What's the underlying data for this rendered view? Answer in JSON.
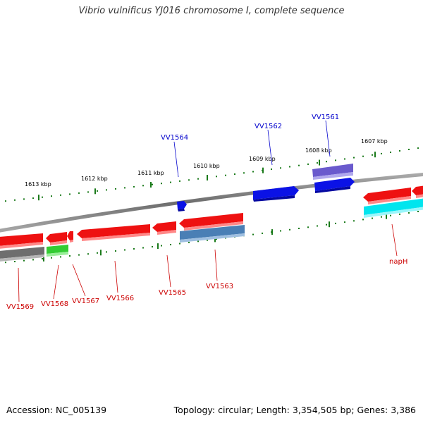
{
  "title": "Vibrio vulnificus YJ016 chromosome I, complete sequence",
  "accession": "Accession: NC_005139",
  "summary": "Topology: circular; Length: 3,354,505 bp; Genes: 3,386",
  "colors": {
    "backbone": "#7b7b7b",
    "tick": "#1a7a1a",
    "upper_label": "#0000cc",
    "lower_label": "#cc0000"
  },
  "kbp_markers": [
    "1613 kbp",
    "1612 kbp",
    "1611 kbp",
    "1610 kbp",
    "1609 kbp",
    "1608 kbp",
    "1607 kbp"
  ],
  "genes_upper_strand": [
    {
      "id": "VV1564",
      "color": "#0b12e6"
    },
    {
      "id": "VV1562",
      "color": "#0b12e6"
    },
    {
      "id": "VV1561",
      "color": "#6a5acd"
    },
    {
      "id": "",
      "color": "#0b12e6"
    }
  ],
  "genes_lower_strand": [
    {
      "id": "VV1569",
      "color": "#ee1111"
    },
    {
      "id": "VV1568",
      "color": "#ee1111"
    },
    {
      "id": "VV1567",
      "color": "#ee1111"
    },
    {
      "id": "VV1566",
      "color": "#ee1111"
    },
    {
      "id": "VV1565",
      "color": "#ee1111"
    },
    {
      "id": "VV1563",
      "color": "#ee1111"
    },
    {
      "id": "napH",
      "color": "#ee1111"
    }
  ],
  "lower_track_features": [
    {
      "color": "#6e6e6e"
    },
    {
      "color": "#33cc33"
    },
    {
      "color": "#4a7fb5"
    },
    {
      "color": "#00e5ee"
    }
  ]
}
